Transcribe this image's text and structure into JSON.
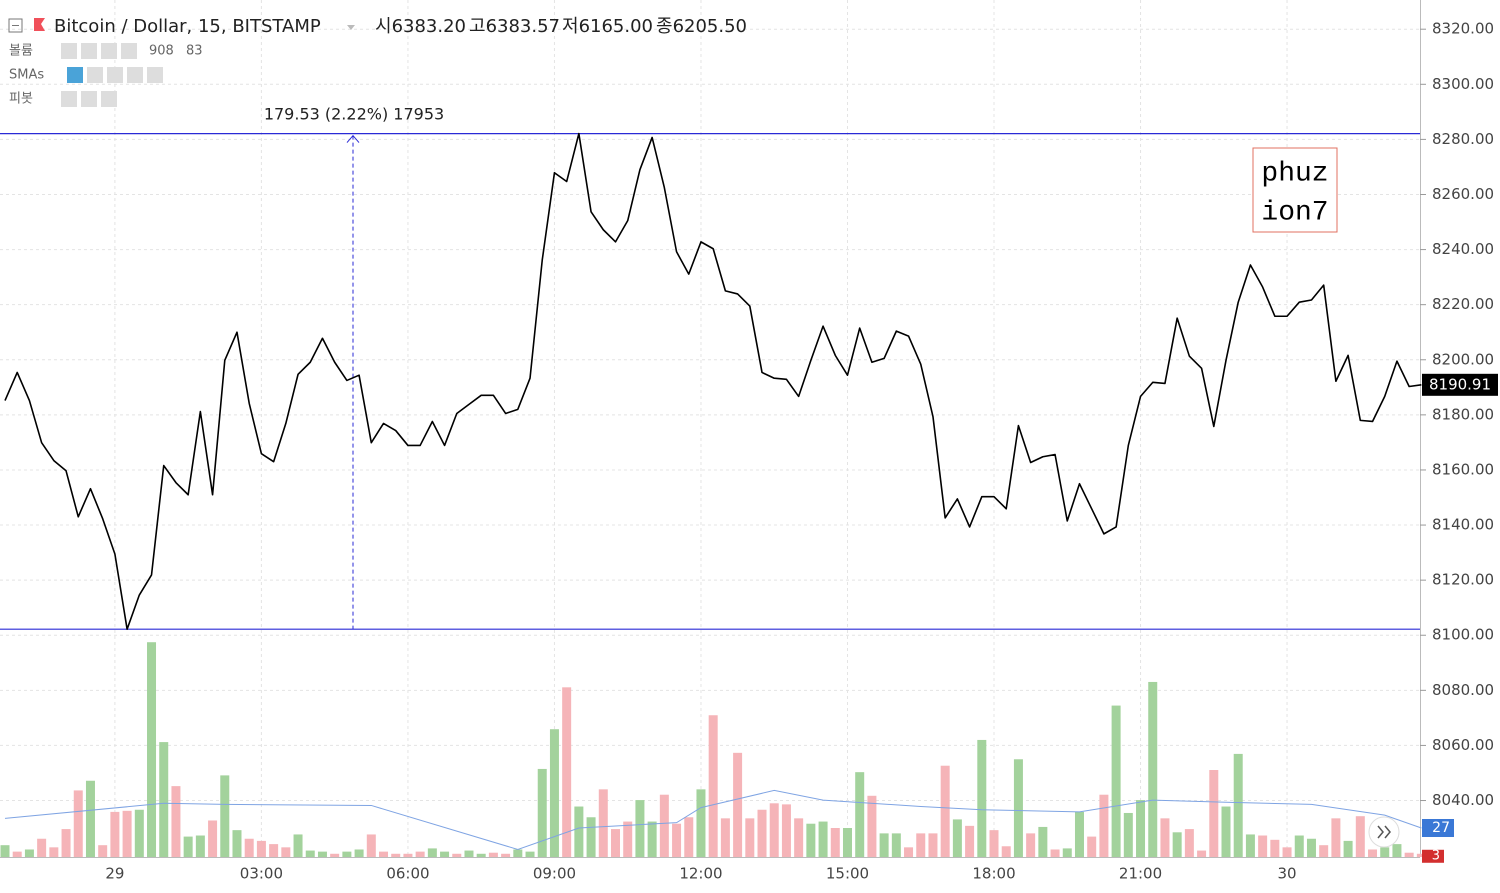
{
  "chart_data": {
    "type": "line",
    "title": "Bitcoin / Dollar, 15, BITSTAMP",
    "ohlc": [
      {
        "label": "시",
        "value": "6383.20"
      },
      {
        "label": "고",
        "value": "6383.57"
      },
      {
        "label": "저",
        "value": "6165.00"
      },
      {
        "label": "종",
        "value": "6205.50"
      }
    ],
    "categories": [
      null,
      null,
      null,
      null,
      null,
      null,
      null,
      null,
      null,
      "29",
      null,
      null,
      null,
      null,
      null,
      null,
      null,
      null,
      null,
      null,
      null,
      "03:00",
      null,
      null,
      null,
      null,
      null,
      null,
      null,
      null,
      null,
      null,
      null,
      "06:00",
      null,
      null,
      null,
      null,
      null,
      null,
      null,
      null,
      null,
      null,
      null,
      "09:00",
      null,
      null,
      null,
      null,
      null,
      null,
      null,
      null,
      null,
      null,
      null,
      "12:00",
      null,
      null,
      null,
      null,
      null,
      null,
      null,
      null,
      null,
      null,
      null,
      "15:00",
      null,
      null,
      null,
      null,
      null,
      null,
      null,
      null,
      null,
      null,
      null,
      "18:00",
      null,
      null,
      null,
      null,
      null,
      null,
      null,
      null,
      null,
      null,
      null,
      "21:00",
      null,
      null,
      null,
      null,
      null,
      null,
      null,
      null,
      null,
      null,
      null,
      "30",
      null,
      null,
      null,
      null,
      null,
      null,
      null,
      null,
      null,
      null,
      null
    ],
    "series": [
      {
        "color": "#000000",
        "values": [
          8185.2,
          8195.4,
          8185.2,
          8169.9,
          8163.4,
          8159.7,
          8143.0,
          8153.2,
          8142.3,
          8129.5,
          8102.2,
          8114.6,
          8121.9,
          8161.6,
          8155.4,
          8151.0,
          8181.2,
          8151.0,
          8199.8,
          8210.0,
          8184.2,
          8165.9,
          8163.0,
          8176.9,
          8194.7,
          8199.1,
          8207.8,
          8199.1,
          8192.5,
          8194.4,
          8169.9,
          8176.9,
          8174.3,
          8168.9,
          8168.9,
          8177.6,
          8168.9,
          8180.5,
          8183.8,
          8187.1,
          8187.1,
          8180.5,
          8182.0,
          8193.3,
          8236.2,
          8267.9,
          8264.7,
          8282.1,
          8253.7,
          8247.2,
          8242.8,
          8250.5,
          8269.0,
          8280.7,
          8262.5,
          8239.2,
          8231.1,
          8242.8,
          8240.3,
          8225.0,
          8223.9,
          8219.5,
          8195.4,
          8193.3,
          8192.9,
          8186.7,
          8199.8,
          8212.2,
          8201.6,
          8194.4,
          8211.5,
          8199.1,
          8200.5,
          8210.4,
          8208.6,
          8198.4,
          8179.4,
          8142.6,
          8149.5,
          8139.3,
          8150.3,
          8150.3,
          8145.9,
          8176.1,
          8162.7,
          8164.8,
          8165.6,
          8141.5,
          8155.0,
          8145.9,
          8136.8,
          8139.3,
          8168.9,
          8186.7,
          8191.8,
          8191.4,
          8215.1,
          8201.3,
          8196.9,
          8175.8,
          8199.8,
          8220.9,
          8234.4,
          8226.4,
          8215.8,
          8215.8,
          8220.9,
          8221.7,
          8227.1,
          8192.2,
          8201.6,
          8178.0,
          8177.6,
          8186.7,
          8199.5,
          8190.3,
          8190.91
        ]
      }
    ],
    "volume": {
      "name": "볼륨",
      "axis": "y2",
      "legend_values": [
        "908",
        "83"
      ],
      "values": [
        11,
        5,
        7,
        17,
        9,
        26,
        62,
        71,
        11,
        42,
        43,
        44,
        200,
        107,
        66,
        19,
        20,
        34,
        76,
        25,
        17,
        15,
        12,
        9,
        21,
        6,
        5,
        3,
        5,
        7,
        21,
        5,
        3,
        3,
        5,
        8,
        5,
        3,
        6,
        3,
        4,
        3,
        7,
        5,
        82,
        119,
        158,
        47,
        37,
        63,
        26,
        33,
        53,
        33,
        58,
        31,
        37,
        63,
        132,
        36,
        97,
        36,
        44,
        50,
        49,
        36,
        31,
        33,
        27,
        27,
        79,
        57,
        22,
        22,
        9,
        22,
        22,
        85,
        35,
        29,
        109,
        25,
        10,
        91,
        22,
        28,
        7,
        8,
        42,
        19,
        58,
        141,
        41,
        53,
        163,
        36,
        23,
        26,
        6,
        81,
        47,
        96,
        21,
        20,
        16,
        9,
        20,
        17,
        11,
        36,
        15,
        38,
        7,
        9,
        12,
        4,
        3
      ],
      "colors": [
        "#a3d29c",
        "#f5b4b8",
        "#a3d29c",
        "#f5b4b8",
        "#f5b4b8",
        "#f5b4b8",
        "#f5b4b8",
        "#a3d29c",
        "#f5b4b8",
        "#f5b4b8",
        "#f5b4b8",
        "#a3d29c",
        "#a3d29c",
        "#a3d29c",
        "#f5b4b8",
        "#a3d29c",
        "#a3d29c",
        "#f5b4b8",
        "#a3d29c",
        "#a3d29c",
        "#f5b4b8",
        "#f5b4b8",
        "#f5b4b8",
        "#f5b4b8",
        "#a3d29c",
        "#a3d29c",
        "#a3d29c",
        "#f5b4b8",
        "#a3d29c",
        "#a3d29c",
        "#f5b4b8",
        "#f5b4b8",
        "#f5b4b8",
        "#f5b4b8",
        "#f5b4b8",
        "#a3d29c",
        "#a3d29c",
        "#f5b4b8",
        "#a3d29c",
        "#a3d29c",
        "#f5b4b8",
        "#f5b4b8",
        "#a3d29c",
        "#a3d29c",
        "#a3d29c",
        "#a3d29c",
        "#f5b4b8",
        "#a3d29c",
        "#a3d29c",
        "#f5b4b8",
        "#f5b4b8",
        "#f5b4b8",
        "#a3d29c",
        "#a3d29c",
        "#f5b4b8",
        "#f5b4b8",
        "#f5b4b8",
        "#a3d29c",
        "#f5b4b8",
        "#f5b4b8",
        "#f5b4b8",
        "#f5b4b8",
        "#f5b4b8",
        "#f5b4b8",
        "#f5b4b8",
        "#f5b4b8",
        "#a3d29c",
        "#a3d29c",
        "#f5b4b8",
        "#a3d29c",
        "#a3d29c",
        "#f5b4b8",
        "#a3d29c",
        "#a3d29c",
        "#f5b4b8",
        "#f5b4b8",
        "#f5b4b8",
        "#f5b4b8",
        "#a3d29c",
        "#f5b4b8",
        "#a3d29c",
        "#f5b4b8",
        "#f5b4b8",
        "#a3d29c",
        "#f5b4b8",
        "#a3d29c",
        "#f5b4b8",
        "#a3d29c",
        "#a3d29c",
        "#f5b4b8",
        "#f5b4b8",
        "#a3d29c",
        "#a3d29c",
        "#a3d29c",
        "#a3d29c",
        "#f5b4b8",
        "#a3d29c",
        "#f5b4b8",
        "#f5b4b8",
        "#f5b4b8",
        "#a3d29c",
        "#a3d29c",
        "#a3d29c",
        "#f5b4b8",
        "#f5b4b8",
        "#f5b4b8",
        "#a3d29c",
        "#a3d29c",
        "#f5b4b8",
        "#f5b4b8",
        "#a3d29c",
        "#f5b4b8",
        "#f5b4b8",
        "#a3d29c",
        "#a3d29c",
        "#f5b4b8",
        "#f5b4b8"
      ]
    },
    "sma": {
      "name": "SMAs",
      "color": "#7fa4e3",
      "x": [
        0,
        13,
        18,
        30,
        42,
        47,
        55,
        57,
        63,
        67,
        75,
        80,
        88,
        94,
        100,
        107,
        113,
        116
      ],
      "values": [
        36,
        50,
        49,
        48,
        7,
        27,
        32,
        46,
        62,
        53,
        47,
        44,
        42,
        53,
        51,
        49,
        39,
        27
      ]
    },
    "pivot": {
      "name": "피봇"
    },
    "ylim": [
      8019.5,
      8330.6
    ],
    "yticks": [
      {
        "value": 8040,
        "label": "8040.00"
      },
      {
        "value": 8060,
        "label": "8060.00"
      },
      {
        "value": 8080,
        "label": "8080.00"
      },
      {
        "value": 8100,
        "label": "8100.00"
      },
      {
        "value": 8120,
        "label": "8120.00"
      },
      {
        "value": 8140,
        "label": "8140.00"
      },
      {
        "value": 8160,
        "label": "8160.00"
      },
      {
        "value": 8180,
        "label": "8180.00"
      },
      {
        "value": 8200,
        "label": "8200.00"
      },
      {
        "value": 8220,
        "label": "8220.00"
      },
      {
        "value": 8240,
        "label": "8240.00"
      },
      {
        "value": 8260,
        "label": "8260.00"
      },
      {
        "value": 8280,
        "label": "8280.00"
      },
      {
        "value": 8300,
        "label": "8300.00"
      },
      {
        "value": 8320,
        "label": "8320.00"
      }
    ],
    "y2lim": [
      0,
      798
    ],
    "grid": true,
    "hlines": {
      "color": "#2a2ad6",
      "values": [
        8282.1,
        8102.2
      ]
    },
    "measure": "179.53 (2.22%) 17953",
    "watermark": [
      "phuz",
      "ion7"
    ]
  }
}
